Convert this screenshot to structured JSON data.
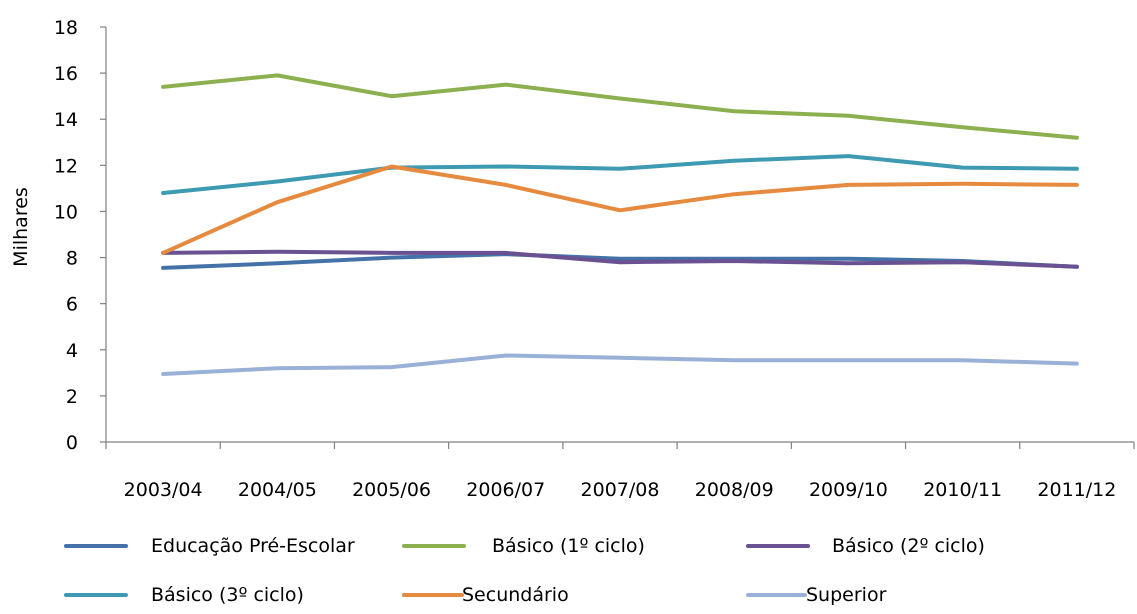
{
  "chart_data": {
    "type": "line",
    "title": "",
    "xlabel": "",
    "ylabel": "Milhares",
    "ylim": [
      0,
      18
    ],
    "yticks": [
      "0",
      "2",
      "4",
      "6",
      "8",
      "10",
      "12",
      "14",
      "16",
      "18"
    ],
    "grid": false,
    "legend_position": "bottom",
    "categories": [
      "2003/04",
      "2004/05",
      "2005/06",
      "2006/07",
      "2007/08",
      "2008/09",
      "2009/10",
      "2010/11",
      "2011/12"
    ],
    "series": [
      {
        "name": "Educação Pré-Escolar",
        "color": "#4472A8",
        "values": [
          7.55,
          7.75,
          8.0,
          8.15,
          7.95,
          7.95,
          7.95,
          7.85,
          7.6
        ]
      },
      {
        "name": "Básico (1º ciclo)",
        "color": "#8CB04F",
        "values": [
          15.4,
          15.9,
          15.0,
          15.5,
          14.9,
          14.35,
          14.15,
          13.65,
          13.2
        ]
      },
      {
        "name": "Básico (2º ciclo)",
        "color": "#6A5192",
        "values": [
          8.2,
          8.25,
          8.2,
          8.2,
          7.8,
          7.85,
          7.75,
          7.8,
          7.6
        ]
      },
      {
        "name": "Básico (3º ciclo)",
        "color": "#3E9AB2",
        "values": [
          10.8,
          11.3,
          11.9,
          11.95,
          11.85,
          12.2,
          12.4,
          11.9,
          11.85
        ]
      },
      {
        "name": "Secundário",
        "color": "#E58A3E",
        "values": [
          8.2,
          10.4,
          11.95,
          11.15,
          10.05,
          10.75,
          11.15,
          11.2,
          11.15
        ]
      },
      {
        "name": "Superior",
        "color": "#99B1D7",
        "values": [
          2.95,
          3.2,
          3.25,
          3.75,
          3.65,
          3.55,
          3.55,
          3.55,
          3.4
        ]
      }
    ]
  }
}
